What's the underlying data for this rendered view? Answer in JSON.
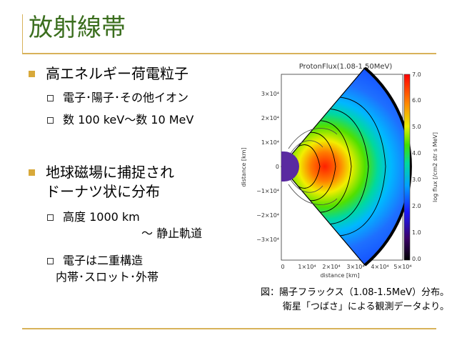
{
  "slide": {
    "title": "放射線帯",
    "bullets": [
      {
        "text": "高エネルギー荷電粒子",
        "sub": [
          "電子･陽子･その他イオン",
          "数 100 keV～数 10 MeV"
        ]
      },
      {
        "lines": [
          "地球磁場に捕捉され",
          "ドーナツ状に分布"
        ],
        "sub": [
          {
            "lines": [
              "高度 1000 km",
              "～ 静止軌道"
            ]
          },
          {
            "lines": [
              "電子は二重構造",
              "内帯･スロット･外帯"
            ]
          }
        ]
      }
    ]
  },
  "figure": {
    "title": "ProtonFlux(1.08-1.50MeV)",
    "xlabel": "distance [km]",
    "ylabel": "distance [km]",
    "x_ticks": [
      "0",
      "1×10⁴",
      "2×10⁴",
      "3×10⁴",
      "4×10⁴",
      "5×10⁴"
    ],
    "y_ticks": [
      "3×10⁴",
      "2×10⁴",
      "1×10⁴",
      "0",
      "−1×10⁴",
      "−2×10⁴",
      "−3×10⁴"
    ],
    "colorbar_label": "log flux [/cm2 str s MeV]",
    "colorbar_ticks": [
      "7.0",
      "6.0",
      "5.0",
      "4.0",
      "3.0",
      "2.0",
      "1.0",
      "0.0"
    ],
    "colors": {
      "peak": "#ff2000",
      "outer": "#1040ff",
      "earth": "#5a2aa0"
    }
  },
  "caption": {
    "line1": "図：陽子フラックス（1.08-1.5MeV）分布。",
    "line2": "衛星「つばさ」による観測データより。"
  },
  "colors": {
    "title": "#3b6e1e",
    "rule": "#d8b25a",
    "bullet": "#d8a93a"
  }
}
